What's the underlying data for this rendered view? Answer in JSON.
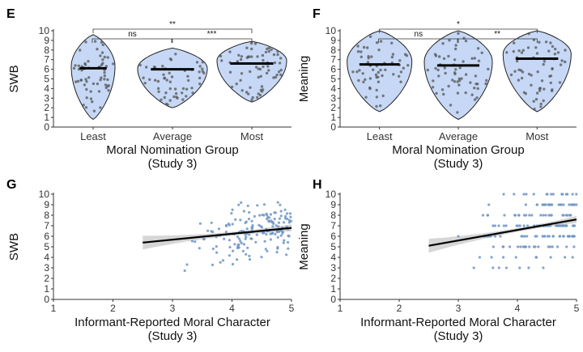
{
  "colors": {
    "violin_fill": "#c6d8f5",
    "violin_stroke": "#222222",
    "violin_dot": "#555555",
    "scatter_dot": "#6f95c7",
    "ci_band": "#cfcfcf",
    "line": "#000000"
  },
  "chart_data": [
    {
      "panel": "E",
      "type": "violin",
      "categories": [
        "Least",
        "Average",
        "Most"
      ],
      "medians": [
        6.1,
        6.0,
        6.6
      ],
      "ylabel": "SWB",
      "xlabel": "Moral Nomination Group",
      "xlabel2": "(Study 3)",
      "ylim": [
        0,
        10
      ],
      "yticks": [
        0,
        1,
        2,
        3,
        4,
        5,
        6,
        7,
        8,
        9,
        10
      ],
      "comparisons": [
        {
          "from": 0,
          "to": 1,
          "label": "ns"
        },
        {
          "from": 1,
          "to": 2,
          "label": "***"
        },
        {
          "from": 0,
          "to": 2,
          "label": "**"
        }
      ]
    },
    {
      "panel": "F",
      "type": "violin",
      "categories": [
        "Least",
        "Average",
        "Most"
      ],
      "medians": [
        6.5,
        6.4,
        7.1
      ],
      "ylabel": "Meaning",
      "xlabel": "Moral Nomination Group",
      "xlabel2": "(Study 3)",
      "ylim": [
        0,
        10
      ],
      "yticks": [
        0,
        1,
        2,
        3,
        4,
        5,
        6,
        7,
        8,
        9,
        10
      ],
      "comparisons": [
        {
          "from": 0,
          "to": 1,
          "label": "ns"
        },
        {
          "from": 1,
          "to": 2,
          "label": "**"
        },
        {
          "from": 0,
          "to": 2,
          "label": "*"
        }
      ]
    },
    {
      "panel": "G",
      "type": "scatter",
      "ylabel": "SWB",
      "xlabel": "Informant-Reported Moral Character",
      "xlabel2": "(Study 3)",
      "xlim": [
        1,
        5
      ],
      "ylim": [
        0,
        10
      ],
      "xticks": [
        1,
        2,
        3,
        4,
        5
      ],
      "yticks": [
        0,
        1,
        2,
        3,
        4,
        5,
        6,
        7,
        8,
        9,
        10
      ],
      "fit": {
        "x": [
          2.5,
          5.0
        ],
        "y": [
          5.4,
          6.8
        ]
      }
    },
    {
      "panel": "H",
      "type": "scatter",
      "ylabel": "Meaning",
      "xlabel": "Informant-Reported Moral Character",
      "xlabel2": "(Study 3)",
      "xlim": [
        1,
        5
      ],
      "ylim": [
        0,
        10
      ],
      "xticks": [
        1,
        2,
        3,
        4,
        5
      ],
      "yticks": [
        0,
        1,
        2,
        3,
        4,
        5,
        6,
        7,
        8,
        9,
        10
      ],
      "fit": {
        "x": [
          2.5,
          5.0
        ],
        "y": [
          5.1,
          7.6
        ]
      }
    }
  ]
}
